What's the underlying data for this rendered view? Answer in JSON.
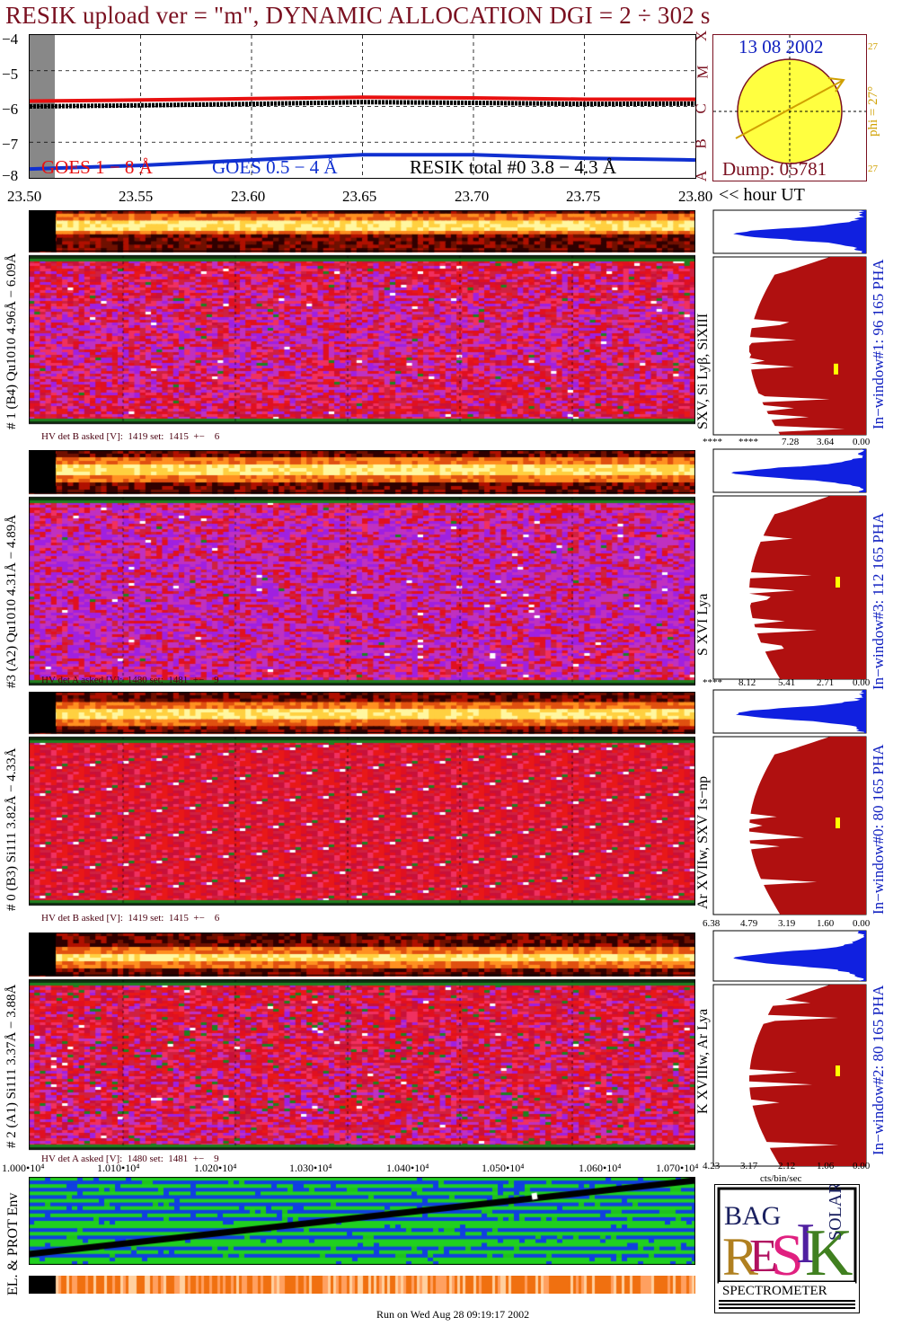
{
  "title": "RESIK upload ver = \"m\", DYNAMIC ALLOCATION  DGI =   2 ÷ 302 s",
  "lightcurve": {
    "y_ticks": [
      "−4",
      "−5",
      "−6",
      "−7",
      "−8"
    ],
    "x_ticks": [
      "23.50",
      "23.55",
      "23.60",
      "23.65",
      "23.70",
      "23.75",
      "23.80"
    ],
    "x_suffix": "<< hour UT",
    "legend_goes1": "GOES 1 − 8 Å",
    "legend_goes05": "GOES 0.5 − 4 Å",
    "legend_resik": "RESIK total #0  3.8 − 4.3 Å",
    "colors": {
      "goes1": "#e81010",
      "goes05": "#1030d0",
      "resik": "#000000"
    }
  },
  "chart_data": {
    "type": "line",
    "title": "RESIK upload ver = \"m\", DYNAMIC ALLOCATION  DGI =   2 ÷ 302 s",
    "xlabel": "hour UT",
    "ylabel": "",
    "xlim": [
      23.5,
      23.8
    ],
    "ylim": [
      -8,
      -4
    ],
    "x": [
      23.5,
      23.55,
      23.6,
      23.65,
      23.7,
      23.75,
      23.8
    ],
    "series": [
      {
        "name": "GOES 1 − 8 Å",
        "values": [
          -5.85,
          -5.82,
          -5.78,
          -5.74,
          -5.76,
          -5.8,
          -5.8
        ]
      },
      {
        "name": "GOES 0.5 − 4 Å",
        "values": [
          -7.75,
          -7.65,
          -7.5,
          -7.35,
          -7.35,
          -7.45,
          -7.5
        ]
      },
      {
        "name": "RESIK total #0  3.8 − 4.3 Å",
        "values": [
          -6.0,
          -5.97,
          -5.93,
          -5.88,
          -5.9,
          -5.93,
          -5.92
        ]
      }
    ]
  },
  "sun_panel": {
    "date": "13 08 2002",
    "dump": "Dump: 05781",
    "phi": "phi = 27°",
    "side_tick_top": "27",
    "side_tick_bottom": "27",
    "letters": [
      "X",
      "M",
      "C",
      "B",
      "A"
    ]
  },
  "detectors": [
    {
      "label": "# 1 (B4) Qu1010 4.96Å − 6.09Å",
      "line_label": "SXV, Si Lyβ, SiXIII",
      "window_label": "In−window#1:  96 165 PHA",
      "hv": "HV det B asked [V]:  1419 set:  1415  +−    6",
      "pha_ticks": [
        "****",
        "****",
        "7.28",
        "3.64",
        "0.00"
      ]
    },
    {
      "label": "#3 (A2) Qu1010  4.31Å − 4.89Å",
      "line_label": "S XVI Lya",
      "window_label": "In−window#3:  112 165 PHA",
      "hv": "HV det A asked [V]:  1480 set:  1481  +−    9",
      "pha_ticks": [
        "****",
        "8.12",
        "5.41",
        "2.71",
        "0.00"
      ]
    },
    {
      "label": "# 0 (B3) Si111  3.82Å − 4.33Å",
      "line_label": "Ar XVIIw, SXV 1s−np",
      "window_label": "In−window#0:  80 165 PHA",
      "hv": "HV det B asked [V]:  1419 set:  1415  +−    6",
      "pha_ticks": [
        "6.38",
        "4.79",
        "3.19",
        "1.60",
        "0.00"
      ]
    },
    {
      "label": "# 2 (A1) Si111  3.37Å − 3.88Å",
      "line_label": "K XVIIIw, Ar Lya",
      "window_label": "In−window#2:  80 165 PHA",
      "hv": "HV det A asked [V]:  1480 set:  1481  +−    9",
      "pha_ticks": [
        "4.23",
        "3.17",
        "2.12",
        "1.06",
        "0.00"
      ]
    }
  ],
  "pha_unit": "cts/bin/sec",
  "env": {
    "label": "EL. & PROT Env",
    "ticks": [
      "1.000•10⁴",
      "1.010•10⁴",
      "1.020•10⁴",
      "1.030•10⁴",
      "1.040•10⁴",
      "1.050•10⁴",
      "1.060•10⁴",
      "1.070•10⁴"
    ]
  },
  "logo": {
    "letters": "RESIK",
    "small_top": "BAG",
    "side": "SOLAR",
    "bottom": "SPECTROMETER"
  },
  "footer": "Run on Wed Aug 28 09:19:17 2002"
}
